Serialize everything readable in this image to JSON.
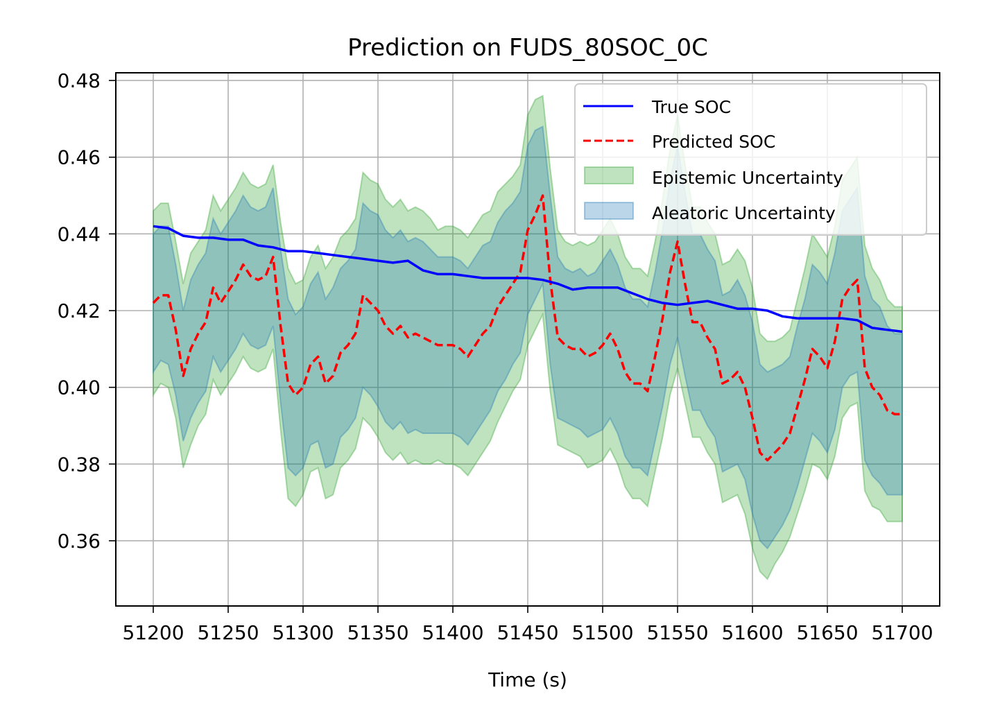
{
  "chart_data": {
    "type": "line",
    "title": "Prediction on FUDS_80SOC_0C",
    "xlabel": "Time (s)",
    "ylabel": "",
    "xlim": [
      51175,
      51725
    ],
    "ylim": [
      0.343,
      0.482
    ],
    "xticks": [
      51200,
      51250,
      51300,
      51350,
      51400,
      51450,
      51500,
      51550,
      51600,
      51650,
      51700
    ],
    "xtick_labels": [
      "51200",
      "51250",
      "51300",
      "51350",
      "51400",
      "51450",
      "51500",
      "51550",
      "51600",
      "51650",
      "51700"
    ],
    "yticks": [
      0.36,
      0.38,
      0.4,
      0.42,
      0.44,
      0.46,
      0.48
    ],
    "ytick_labels": [
      "0.36",
      "0.38",
      "0.40",
      "0.42",
      "0.44",
      "0.46",
      "0.48"
    ],
    "grid": true,
    "legend_position": "top-right",
    "series": [
      {
        "name": "True SOC",
        "kind": "line",
        "color": "#0000ff",
        "x": [
          51200,
          51210,
          51220,
          51230,
          51240,
          51250,
          51260,
          51270,
          51280,
          51290,
          51300,
          51310,
          51320,
          51330,
          51340,
          51350,
          51360,
          51370,
          51380,
          51390,
          51400,
          51410,
          51420,
          51430,
          51440,
          51450,
          51460,
          51470,
          51480,
          51490,
          51500,
          51510,
          51520,
          51530,
          51540,
          51550,
          51560,
          51570,
          51580,
          51590,
          51600,
          51610,
          51620,
          51630,
          51640,
          51650,
          51660,
          51670,
          51680,
          51690,
          51700
        ],
        "y": [
          0.442,
          0.4415,
          0.4395,
          0.439,
          0.439,
          0.4385,
          0.4385,
          0.437,
          0.4365,
          0.4355,
          0.4355,
          0.435,
          0.4345,
          0.434,
          0.4335,
          0.433,
          0.4325,
          0.433,
          0.4305,
          0.4295,
          0.4295,
          0.429,
          0.4285,
          0.4285,
          0.4285,
          0.4285,
          0.428,
          0.427,
          0.4255,
          0.426,
          0.426,
          0.426,
          0.4245,
          0.423,
          0.422,
          0.4215,
          0.422,
          0.4225,
          0.4215,
          0.4205,
          0.4205,
          0.42,
          0.4185,
          0.418,
          0.418,
          0.418,
          0.418,
          0.4175,
          0.4155,
          0.415,
          0.4145
        ]
      },
      {
        "name": "Predicted SOC",
        "kind": "dashed",
        "color": "#ff0000",
        "x": [
          51200,
          51205,
          51210,
          51215,
          51220,
          51225,
          51230,
          51235,
          51240,
          51245,
          51250,
          51255,
          51260,
          51265,
          51270,
          51275,
          51280,
          51285,
          51290,
          51295,
          51300,
          51305,
          51310,
          51315,
          51320,
          51325,
          51330,
          51335,
          51340,
          51345,
          51350,
          51355,
          51360,
          51365,
          51370,
          51375,
          51380,
          51385,
          51390,
          51395,
          51400,
          51405,
          51410,
          51415,
          51420,
          51425,
          51430,
          51435,
          51440,
          51445,
          51450,
          51455,
          51460,
          51465,
          51470,
          51475,
          51480,
          51485,
          51490,
          51495,
          51500,
          51505,
          51510,
          51515,
          51520,
          51525,
          51530,
          51535,
          51540,
          51545,
          51550,
          51555,
          51560,
          51565,
          51570,
          51575,
          51580,
          51585,
          51590,
          51595,
          51600,
          51605,
          51610,
          51615,
          51620,
          51625,
          51630,
          51635,
          51640,
          51645,
          51650,
          51655,
          51660,
          51665,
          51670,
          51675,
          51680,
          51685,
          51690,
          51695,
          51700
        ],
        "y": [
          0.422,
          0.424,
          0.424,
          0.415,
          0.403,
          0.41,
          0.414,
          0.417,
          0.426,
          0.422,
          0.425,
          0.428,
          0.432,
          0.429,
          0.428,
          0.429,
          0.434,
          0.416,
          0.401,
          0.398,
          0.4,
          0.406,
          0.408,
          0.401,
          0.403,
          0.409,
          0.411,
          0.414,
          0.424,
          0.422,
          0.42,
          0.416,
          0.414,
          0.416,
          0.413,
          0.414,
          0.413,
          0.412,
          0.411,
          0.411,
          0.411,
          0.41,
          0.408,
          0.411,
          0.414,
          0.416,
          0.421,
          0.424,
          0.427,
          0.43,
          0.441,
          0.445,
          0.45,
          0.428,
          0.413,
          0.411,
          0.41,
          0.41,
          0.408,
          0.409,
          0.411,
          0.414,
          0.41,
          0.404,
          0.401,
          0.401,
          0.399,
          0.408,
          0.418,
          0.43,
          0.438,
          0.427,
          0.417,
          0.417,
          0.413,
          0.41,
          0.401,
          0.402,
          0.404,
          0.4,
          0.392,
          0.383,
          0.381,
          0.383,
          0.385,
          0.388,
          0.395,
          0.402,
          0.41,
          0.408,
          0.405,
          0.412,
          0.423,
          0.426,
          0.428,
          0.405,
          0.4,
          0.398,
          0.394,
          0.393,
          0.393
        ]
      },
      {
        "name": "Epistemic Uncertainty",
        "kind": "band",
        "color": "#2ca02c",
        "x": [
          51200,
          51205,
          51210,
          51215,
          51220,
          51225,
          51230,
          51235,
          51240,
          51245,
          51250,
          51255,
          51260,
          51265,
          51270,
          51275,
          51280,
          51285,
          51290,
          51295,
          51300,
          51305,
          51310,
          51315,
          51320,
          51325,
          51330,
          51335,
          51340,
          51345,
          51350,
          51355,
          51360,
          51365,
          51370,
          51375,
          51380,
          51385,
          51390,
          51395,
          51400,
          51405,
          51410,
          51415,
          51420,
          51425,
          51430,
          51435,
          51440,
          51445,
          51450,
          51455,
          51460,
          51465,
          51470,
          51475,
          51480,
          51485,
          51490,
          51495,
          51500,
          51505,
          51510,
          51515,
          51520,
          51525,
          51530,
          51535,
          51540,
          51545,
          51550,
          51555,
          51560,
          51565,
          51570,
          51575,
          51580,
          51585,
          51590,
          51595,
          51600,
          51605,
          51610,
          51615,
          51620,
          51625,
          51630,
          51635,
          51640,
          51645,
          51650,
          51655,
          51660,
          51665,
          51670,
          51675,
          51680,
          51685,
          51690,
          51695,
          51700
        ],
        "lower": [
          0.398,
          0.401,
          0.4,
          0.392,
          0.379,
          0.385,
          0.39,
          0.393,
          0.402,
          0.398,
          0.401,
          0.404,
          0.408,
          0.405,
          0.404,
          0.405,
          0.41,
          0.389,
          0.371,
          0.369,
          0.372,
          0.378,
          0.379,
          0.371,
          0.372,
          0.379,
          0.381,
          0.384,
          0.392,
          0.39,
          0.387,
          0.383,
          0.381,
          0.383,
          0.38,
          0.381,
          0.38,
          0.38,
          0.381,
          0.38,
          0.38,
          0.379,
          0.377,
          0.38,
          0.383,
          0.386,
          0.391,
          0.395,
          0.399,
          0.402,
          0.411,
          0.415,
          0.419,
          0.399,
          0.385,
          0.384,
          0.383,
          0.382,
          0.379,
          0.38,
          0.381,
          0.384,
          0.38,
          0.374,
          0.371,
          0.371,
          0.369,
          0.378,
          0.387,
          0.398,
          0.405,
          0.396,
          0.387,
          0.387,
          0.383,
          0.38,
          0.37,
          0.371,
          0.372,
          0.367,
          0.358,
          0.352,
          0.35,
          0.354,
          0.357,
          0.361,
          0.367,
          0.373,
          0.38,
          0.379,
          0.376,
          0.382,
          0.392,
          0.395,
          0.396,
          0.373,
          0.369,
          0.368,
          0.365,
          0.365,
          0.365
        ],
        "upper": [
          0.446,
          0.448,
          0.448,
          0.438,
          0.427,
          0.435,
          0.438,
          0.441,
          0.45,
          0.446,
          0.449,
          0.452,
          0.456,
          0.453,
          0.452,
          0.453,
          0.458,
          0.443,
          0.431,
          0.427,
          0.428,
          0.434,
          0.437,
          0.431,
          0.434,
          0.439,
          0.441,
          0.444,
          0.456,
          0.454,
          0.453,
          0.449,
          0.447,
          0.449,
          0.446,
          0.447,
          0.446,
          0.444,
          0.441,
          0.442,
          0.442,
          0.441,
          0.439,
          0.442,
          0.445,
          0.446,
          0.451,
          0.453,
          0.455,
          0.458,
          0.471,
          0.475,
          0.476,
          0.457,
          0.441,
          0.438,
          0.437,
          0.438,
          0.437,
          0.438,
          0.441,
          0.444,
          0.44,
          0.434,
          0.431,
          0.431,
          0.429,
          0.438,
          0.449,
          0.462,
          0.471,
          0.458,
          0.447,
          0.447,
          0.443,
          0.44,
          0.432,
          0.433,
          0.436,
          0.433,
          0.426,
          0.414,
          0.412,
          0.412,
          0.413,
          0.415,
          0.423,
          0.431,
          0.44,
          0.437,
          0.434,
          0.442,
          0.454,
          0.457,
          0.46,
          0.437,
          0.431,
          0.428,
          0.423,
          0.421,
          0.421
        ]
      },
      {
        "name": "Aleatoric Uncertainty",
        "kind": "band",
        "color": "#1f77b4",
        "x": [
          51200,
          51205,
          51210,
          51215,
          51220,
          51225,
          51230,
          51235,
          51240,
          51245,
          51250,
          51255,
          51260,
          51265,
          51270,
          51275,
          51280,
          51285,
          51290,
          51295,
          51300,
          51305,
          51310,
          51315,
          51320,
          51325,
          51330,
          51335,
          51340,
          51345,
          51350,
          51355,
          51360,
          51365,
          51370,
          51375,
          51380,
          51385,
          51390,
          51395,
          51400,
          51405,
          51410,
          51415,
          51420,
          51425,
          51430,
          51435,
          51440,
          51445,
          51450,
          51455,
          51460,
          51465,
          51470,
          51475,
          51480,
          51485,
          51490,
          51495,
          51500,
          51505,
          51510,
          51515,
          51520,
          51525,
          51530,
          51535,
          51540,
          51545,
          51550,
          51555,
          51560,
          51565,
          51570,
          51575,
          51580,
          51585,
          51590,
          51595,
          51600,
          51605,
          51610,
          51615,
          51620,
          51625,
          51630,
          51635,
          51640,
          51645,
          51650,
          51655,
          51660,
          51665,
          51670,
          51675,
          51680,
          51685,
          51690,
          51695,
          51700
        ],
        "lower": [
          0.404,
          0.407,
          0.406,
          0.398,
          0.386,
          0.392,
          0.396,
          0.399,
          0.408,
          0.404,
          0.407,
          0.41,
          0.414,
          0.411,
          0.41,
          0.411,
          0.416,
          0.396,
          0.379,
          0.377,
          0.379,
          0.385,
          0.386,
          0.379,
          0.38,
          0.387,
          0.389,
          0.392,
          0.4,
          0.398,
          0.395,
          0.391,
          0.389,
          0.391,
          0.388,
          0.389,
          0.388,
          0.388,
          0.388,
          0.388,
          0.388,
          0.387,
          0.385,
          0.388,
          0.391,
          0.394,
          0.399,
          0.402,
          0.406,
          0.409,
          0.419,
          0.423,
          0.427,
          0.406,
          0.392,
          0.391,
          0.39,
          0.389,
          0.387,
          0.388,
          0.389,
          0.392,
          0.388,
          0.382,
          0.379,
          0.379,
          0.377,
          0.386,
          0.395,
          0.406,
          0.413,
          0.403,
          0.394,
          0.394,
          0.39,
          0.387,
          0.378,
          0.379,
          0.38,
          0.376,
          0.367,
          0.36,
          0.358,
          0.361,
          0.364,
          0.368,
          0.374,
          0.381,
          0.388,
          0.386,
          0.383,
          0.389,
          0.4,
          0.403,
          0.404,
          0.381,
          0.377,
          0.375,
          0.372,
          0.372,
          0.372
        ],
        "upper": [
          0.44,
          0.442,
          0.442,
          0.432,
          0.42,
          0.428,
          0.432,
          0.435,
          0.444,
          0.44,
          0.443,
          0.446,
          0.45,
          0.447,
          0.446,
          0.447,
          0.452,
          0.436,
          0.423,
          0.419,
          0.421,
          0.427,
          0.43,
          0.423,
          0.426,
          0.431,
          0.433,
          0.436,
          0.448,
          0.446,
          0.445,
          0.441,
          0.439,
          0.441,
          0.438,
          0.439,
          0.438,
          0.436,
          0.434,
          0.434,
          0.434,
          0.433,
          0.431,
          0.434,
          0.437,
          0.438,
          0.443,
          0.446,
          0.448,
          0.451,
          0.463,
          0.467,
          0.468,
          0.45,
          0.434,
          0.431,
          0.43,
          0.431,
          0.429,
          0.43,
          0.433,
          0.436,
          0.432,
          0.426,
          0.423,
          0.423,
          0.421,
          0.43,
          0.441,
          0.454,
          0.463,
          0.451,
          0.44,
          0.44,
          0.436,
          0.433,
          0.424,
          0.425,
          0.428,
          0.424,
          0.417,
          0.406,
          0.404,
          0.405,
          0.406,
          0.408,
          0.416,
          0.423,
          0.432,
          0.43,
          0.427,
          0.435,
          0.446,
          0.449,
          0.452,
          0.429,
          0.423,
          0.421,
          0.416,
          0.414,
          0.414
        ]
      }
    ]
  }
}
